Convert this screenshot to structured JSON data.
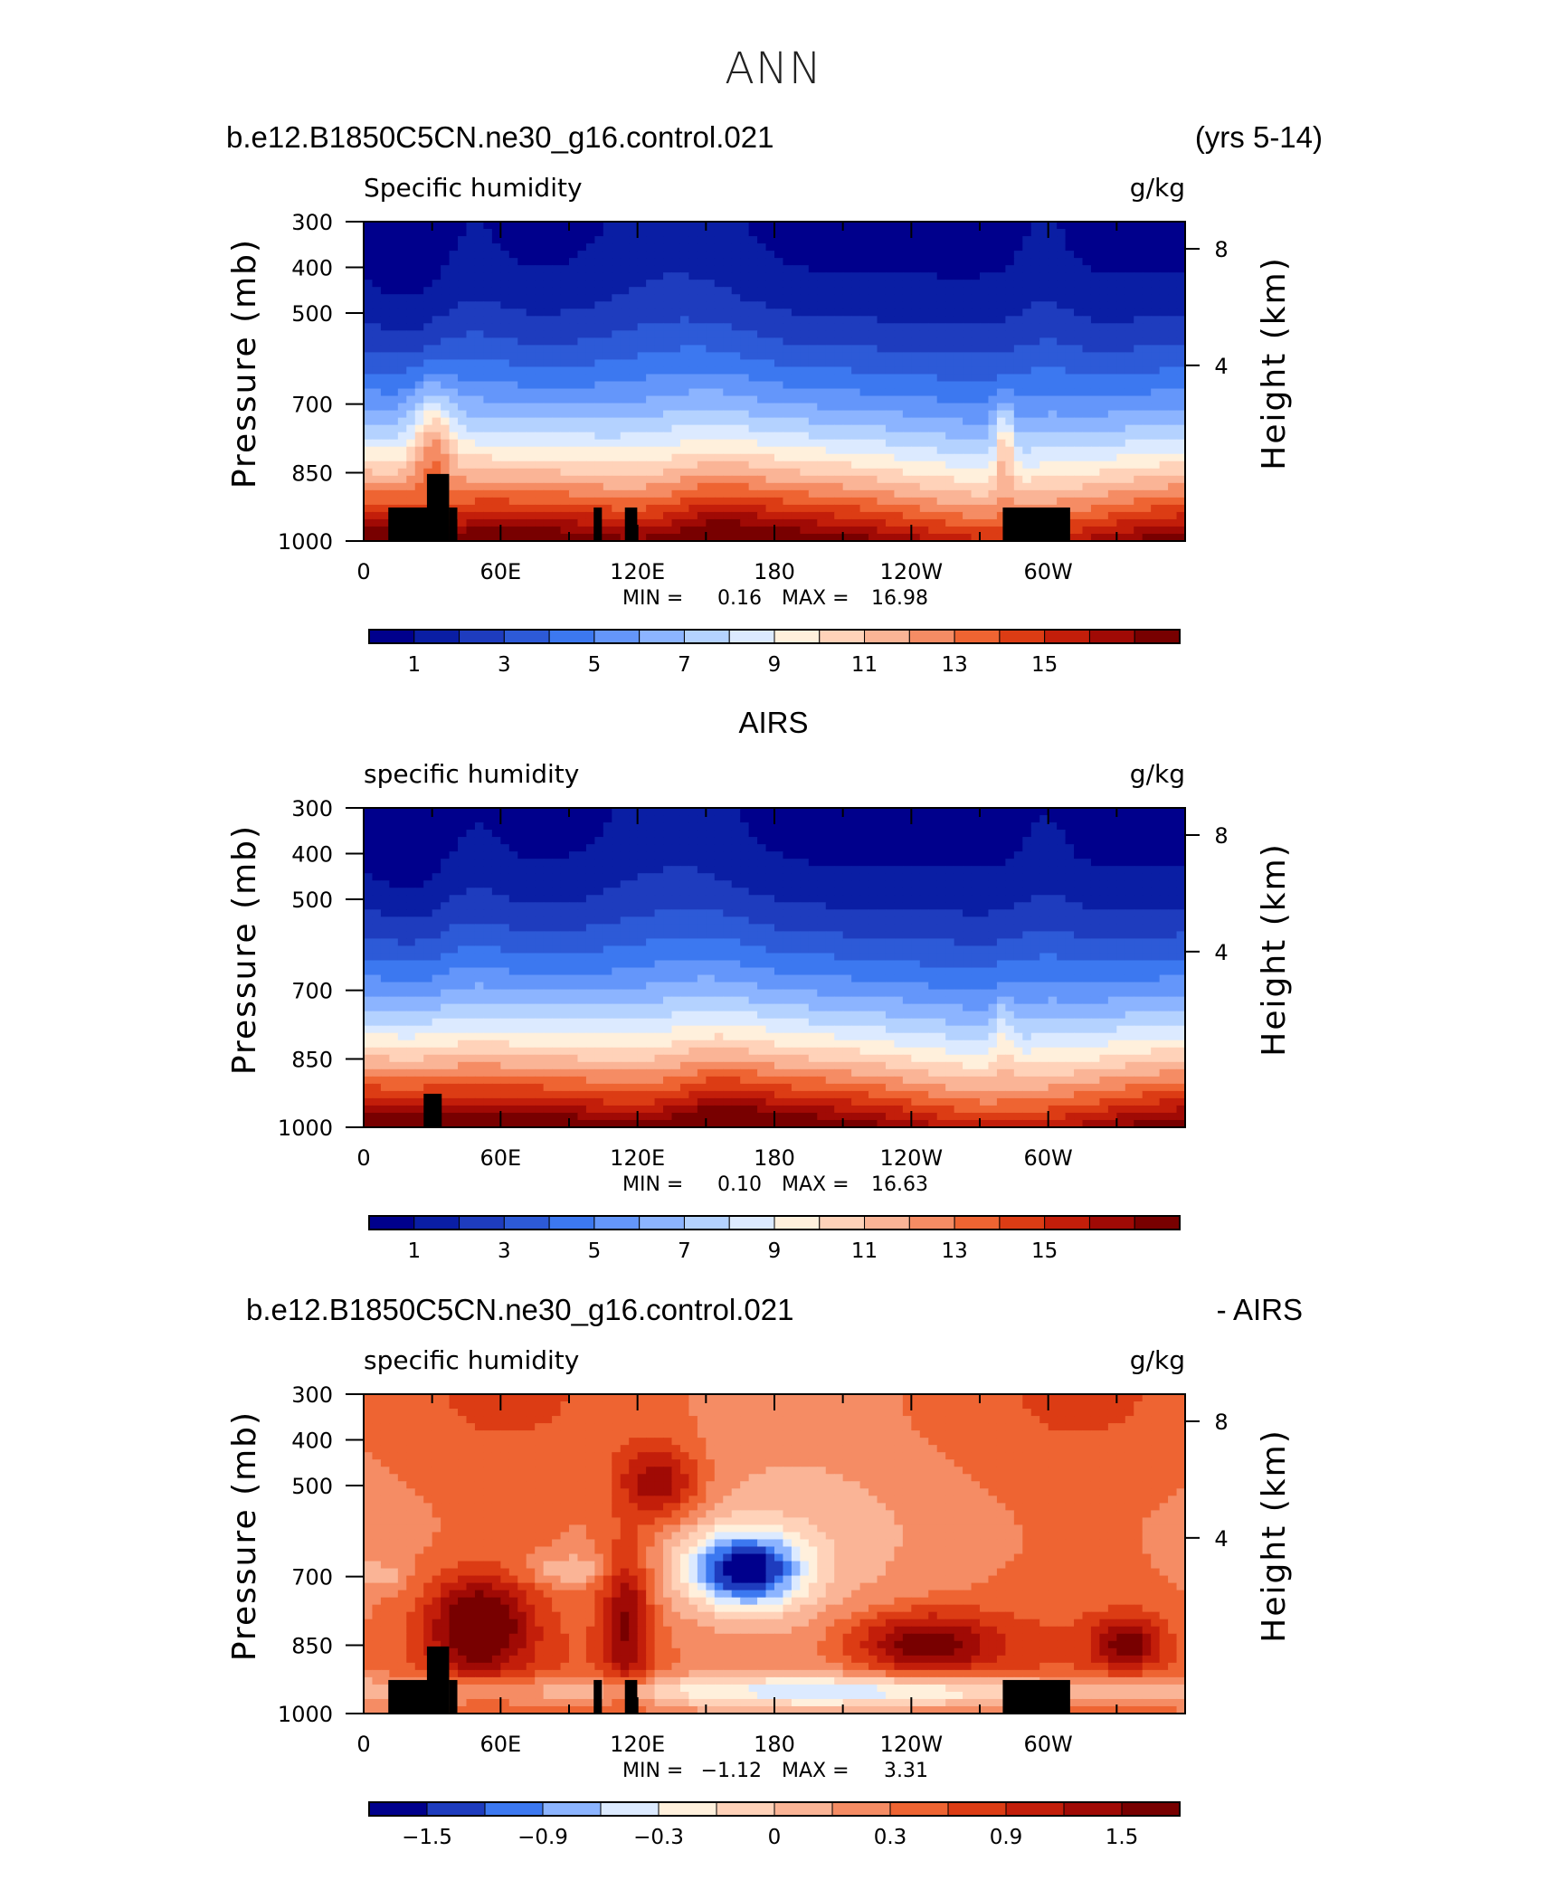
{
  "page": {
    "title": "ANN",
    "case_name": "b.e12.B1850C5CN.ne30_g16.control.021",
    "years": "(yrs 5-14)",
    "obs_name": "AIRS",
    "diff_left": "b.e12.B1850C5CN.ne30_g16.control.021",
    "diff_right": "- AIRS"
  },
  "chart_data": [
    {
      "type": "heatmap",
      "id": "model",
      "left_title": "Specific humidity",
      "units": "g/kg",
      "ylabel": "Pressure (mb)",
      "ylabel_right": "Height (km)",
      "x_ticks": [
        "0",
        "60E",
        "120E",
        "180",
        "120W",
        "60W"
      ],
      "y_ticks": [
        "300",
        "400",
        "500",
        "700",
        "850",
        "1000"
      ],
      "y_right_ticks": [
        "8",
        "4"
      ],
      "stats": {
        "min_label": "MIN =",
        "min": "0.16",
        "max_label": "MAX =",
        "max": "16.98"
      },
      "colorbar": {
        "labels": [
          "1",
          "3",
          "5",
          "7",
          "9",
          "11",
          "13",
          "15"
        ],
        "colors": [
          "#00008c",
          "#0a1ea4",
          "#1e3cbe",
          "#2d5ad7",
          "#3c78f0",
          "#6496fa",
          "#8cb4ff",
          "#b4d2ff",
          "#dceaff",
          "#fff0dc",
          "#ffd2b9",
          "#fab496",
          "#f58c64",
          "#ee6432",
          "#dc3c14",
          "#c31e0a",
          "#a00a05",
          "#780000"
        ]
      },
      "cmin": 0,
      "cmax": 16
    },
    {
      "type": "heatmap",
      "id": "obs",
      "left_title": "specific humidity",
      "units": "g/kg",
      "ylabel": "Pressure (mb)",
      "ylabel_right": "Height (km)",
      "x_ticks": [
        "0",
        "60E",
        "120E",
        "180",
        "120W",
        "60W"
      ],
      "y_ticks": [
        "300",
        "400",
        "500",
        "700",
        "850",
        "1000"
      ],
      "y_right_ticks": [
        "8",
        "4"
      ],
      "stats": {
        "min_label": "MIN =",
        "min": "0.10",
        "max_label": "MAX =",
        "max": "16.63"
      },
      "colorbar": {
        "labels": [
          "1",
          "3",
          "5",
          "7",
          "9",
          "11",
          "13",
          "15"
        ],
        "colors": [
          "#00008c",
          "#0a1ea4",
          "#1e3cbe",
          "#2d5ad7",
          "#3c78f0",
          "#6496fa",
          "#8cb4ff",
          "#b4d2ff",
          "#dceaff",
          "#fff0dc",
          "#ffd2b9",
          "#fab496",
          "#f58c64",
          "#ee6432",
          "#dc3c14",
          "#c31e0a",
          "#a00a05",
          "#780000"
        ]
      },
      "cmin": 0,
      "cmax": 16
    },
    {
      "type": "heatmap",
      "id": "diff",
      "left_title": "specific humidity",
      "units": "g/kg",
      "ylabel": "Pressure (mb)",
      "ylabel_right": "Height (km)",
      "x_ticks": [
        "0",
        "60E",
        "120E",
        "180",
        "120W",
        "60W"
      ],
      "y_ticks": [
        "300",
        "400",
        "500",
        "700",
        "850",
        "1000"
      ],
      "y_right_ticks": [
        "8",
        "4"
      ],
      "stats": {
        "min_label": "MIN =",
        "min": "−1.12",
        "max_label": "MAX =",
        "max": "3.31"
      },
      "colorbar": {
        "labels": [
          "−1.5",
          "−0.9",
          "−0.3",
          "0",
          "0.3",
          "0.9",
          "1.5"
        ],
        "colors": [
          "#00008c",
          "#1e3cbe",
          "#3c78f0",
          "#8cb4ff",
          "#dceaff",
          "#fff0dc",
          "#ffd2b9",
          "#fab496",
          "#f58c64",
          "#ee6432",
          "#dc3c14",
          "#c31e0a",
          "#a00a05",
          "#780000"
        ]
      },
      "cmin": -2.1,
      "cmax": 2.1
    }
  ]
}
